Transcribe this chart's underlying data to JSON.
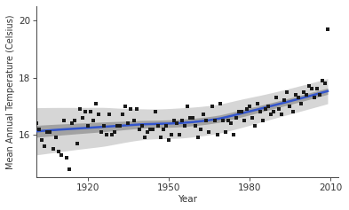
{
  "title": "",
  "xlabel": "Year",
  "ylabel": "Mean Annual Temperature (Celsius)",
  "xlim": [
    1901,
    2013
  ],
  "ylim": [
    14.5,
    20.5
  ],
  "yticks": [
    16,
    18,
    20
  ],
  "xticks": [
    1920,
    1950,
    1980,
    2010
  ],
  "background_color": "#ffffff",
  "scatter_color": "#1a1a1a",
  "line_color": "#3355cc",
  "ci_inner_color": "#999999",
  "ci_outer_color": "#cccccc",
  "years": [
    1901,
    1902,
    1903,
    1904,
    1905,
    1906,
    1907,
    1908,
    1909,
    1910,
    1911,
    1912,
    1913,
    1914,
    1915,
    1916,
    1917,
    1918,
    1919,
    1920,
    1921,
    1922,
    1923,
    1924,
    1925,
    1926,
    1927,
    1928,
    1929,
    1930,
    1931,
    1932,
    1933,
    1934,
    1935,
    1936,
    1937,
    1938,
    1939,
    1940,
    1941,
    1942,
    1943,
    1944,
    1945,
    1946,
    1947,
    1948,
    1949,
    1950,
    1951,
    1952,
    1953,
    1954,
    1955,
    1956,
    1957,
    1958,
    1959,
    1960,
    1961,
    1962,
    1963,
    1964,
    1965,
    1966,
    1967,
    1968,
    1969,
    1970,
    1971,
    1972,
    1973,
    1974,
    1975,
    1976,
    1977,
    1978,
    1979,
    1980,
    1981,
    1982,
    1983,
    1984,
    1985,
    1986,
    1987,
    1988,
    1989,
    1990,
    1991,
    1992,
    1993,
    1994,
    1995,
    1996,
    1997,
    1998,
    1999,
    2000,
    2001,
    2002,
    2003,
    2004,
    2005,
    2006,
    2007,
    2008,
    2009
  ],
  "temps": [
    16.4,
    16.2,
    15.8,
    15.6,
    16.1,
    16.1,
    15.5,
    15.9,
    15.4,
    15.3,
    16.5,
    15.2,
    14.8,
    16.4,
    16.5,
    15.7,
    16.9,
    16.6,
    16.8,
    16.3,
    16.8,
    16.5,
    17.1,
    16.7,
    16.1,
    16.3,
    16.0,
    16.7,
    16.0,
    16.1,
    16.3,
    16.3,
    16.7,
    17.0,
    16.4,
    16.9,
    16.5,
    16.9,
    16.2,
    16.3,
    15.9,
    16.1,
    16.2,
    16.2,
    16.8,
    16.3,
    15.9,
    16.2,
    16.3,
    15.8,
    16.0,
    16.5,
    16.4,
    16.0,
    16.5,
    16.3,
    17.0,
    16.6,
    16.6,
    16.3,
    15.9,
    16.2,
    16.7,
    16.5,
    16.1,
    17.0,
    16.5,
    16.0,
    17.1,
    16.5,
    16.1,
    16.5,
    16.4,
    16.0,
    16.6,
    16.8,
    16.8,
    16.5,
    16.9,
    17.0,
    16.6,
    16.3,
    17.1,
    16.8,
    16.5,
    16.9,
    17.0,
    16.7,
    16.8,
    17.3,
    16.9,
    16.7,
    17.2,
    17.5,
    17.0,
    16.8,
    17.4,
    17.3,
    17.1,
    17.5,
    17.4,
    17.7,
    17.6,
    17.3,
    17.6,
    17.4,
    17.9,
    17.8,
    19.7
  ]
}
